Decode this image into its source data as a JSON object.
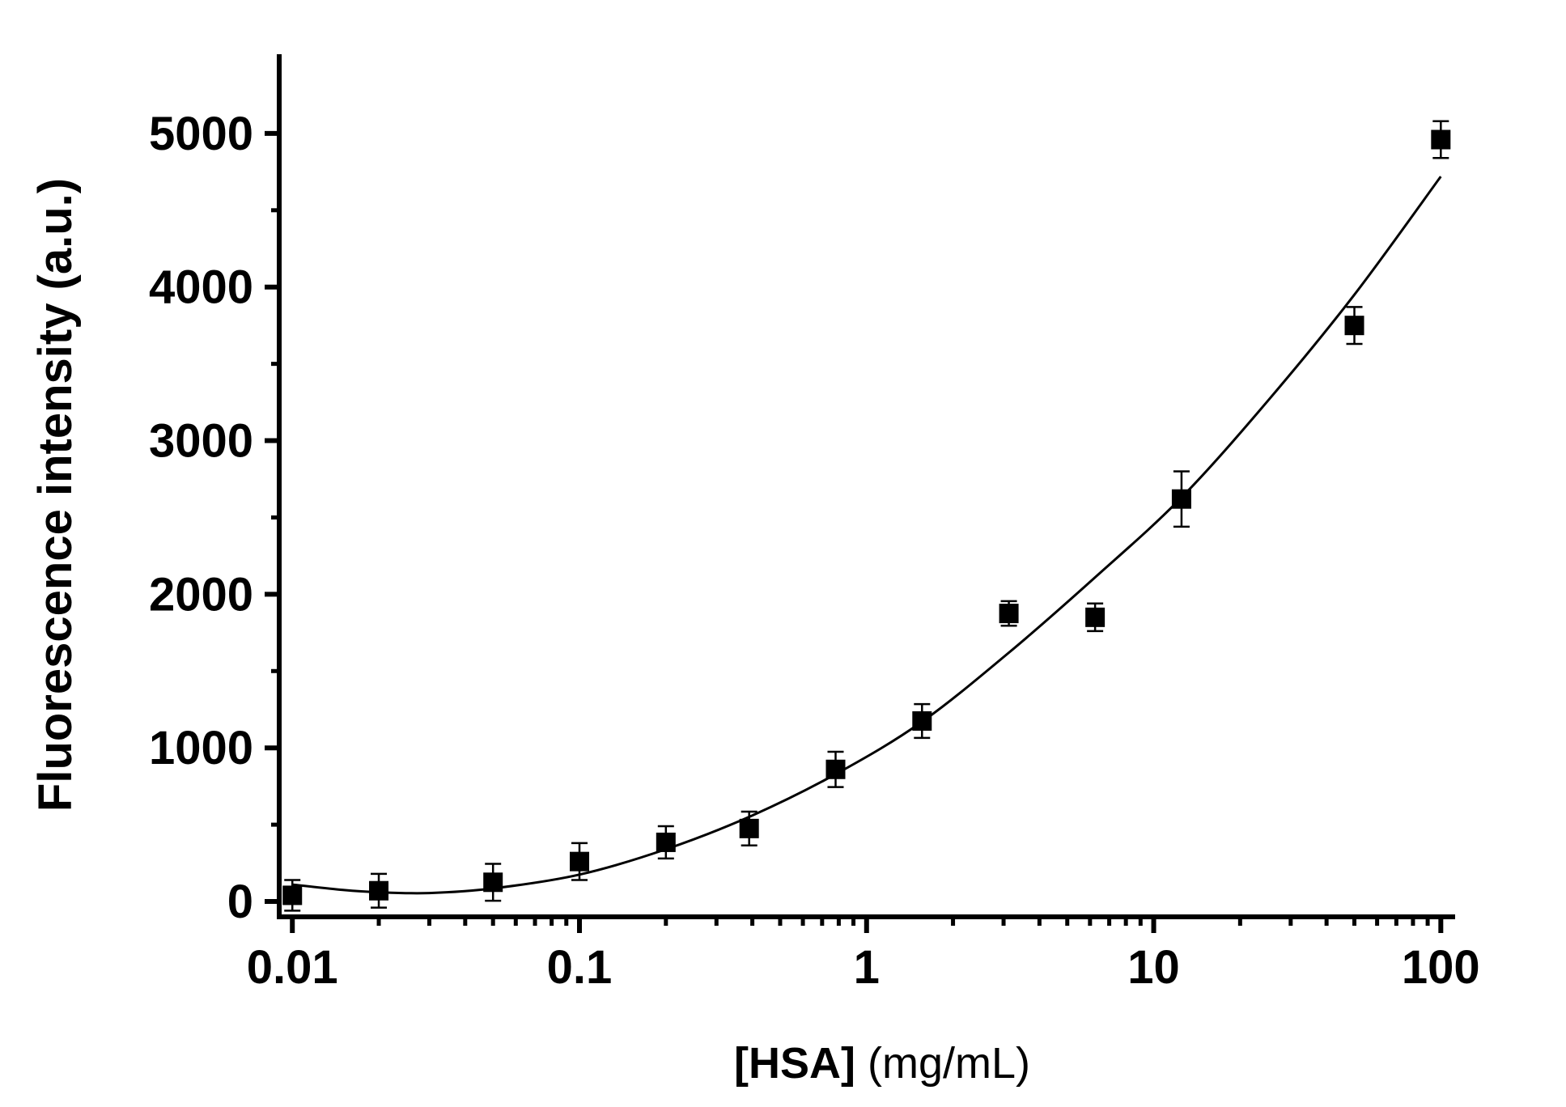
{
  "chart_data": {
    "type": "scatter",
    "x_scale": "log",
    "xlim": [
      0.009,
      110
    ],
    "ylim": [
      -100,
      5500
    ],
    "x_ticks": [
      0.01,
      0.1,
      1,
      10,
      100
    ],
    "x_tick_labels": [
      "0.01",
      "0.1",
      "1",
      "10",
      "100"
    ],
    "y_ticks": [
      0,
      1000,
      2000,
      3000,
      4000,
      5000
    ],
    "y_tick_labels": [
      "0",
      "1000",
      "2000",
      "3000",
      "4000",
      "5000"
    ],
    "xlabel_bold": "[HSA]",
    "xlabel_rest": " (mg/mL)",
    "ylabel": "Fluorescence intensity (a.u.)",
    "grid": false,
    "series": [
      {
        "marker": "square",
        "points": [
          {
            "x": 0.01,
            "y": 40,
            "err": 100
          },
          {
            "x": 0.02,
            "y": 70,
            "err": 110
          },
          {
            "x": 0.05,
            "y": 125,
            "err": 120
          },
          {
            "x": 0.1,
            "y": 260,
            "err": 120
          },
          {
            "x": 0.2,
            "y": 385,
            "err": 105
          },
          {
            "x": 0.39,
            "y": 475,
            "err": 110
          },
          {
            "x": 0.78,
            "y": 860,
            "err": 115
          },
          {
            "x": 1.56,
            "y": 1175,
            "err": 110
          },
          {
            "x": 3.13,
            "y": 1875,
            "err": 80
          },
          {
            "x": 6.25,
            "y": 1850,
            "err": 90
          },
          {
            "x": 12.5,
            "y": 2620,
            "err": 180
          },
          {
            "x": 50,
            "y": 3750,
            "err": 120
          },
          {
            "x": 100,
            "y": 4960,
            "err": 120
          }
        ]
      }
    ],
    "fit_curve": {
      "x": [
        0.01,
        0.015,
        0.02,
        0.03,
        0.05,
        0.1,
        0.2,
        0.4,
        0.8,
        1.56,
        3.13,
        6.25,
        12.5,
        25,
        50,
        100
      ],
      "y": [
        110,
        75,
        60,
        55,
        85,
        175,
        340,
        560,
        840,
        1170,
        1620,
        2110,
        2630,
        3260,
        3950,
        4720
      ]
    }
  }
}
